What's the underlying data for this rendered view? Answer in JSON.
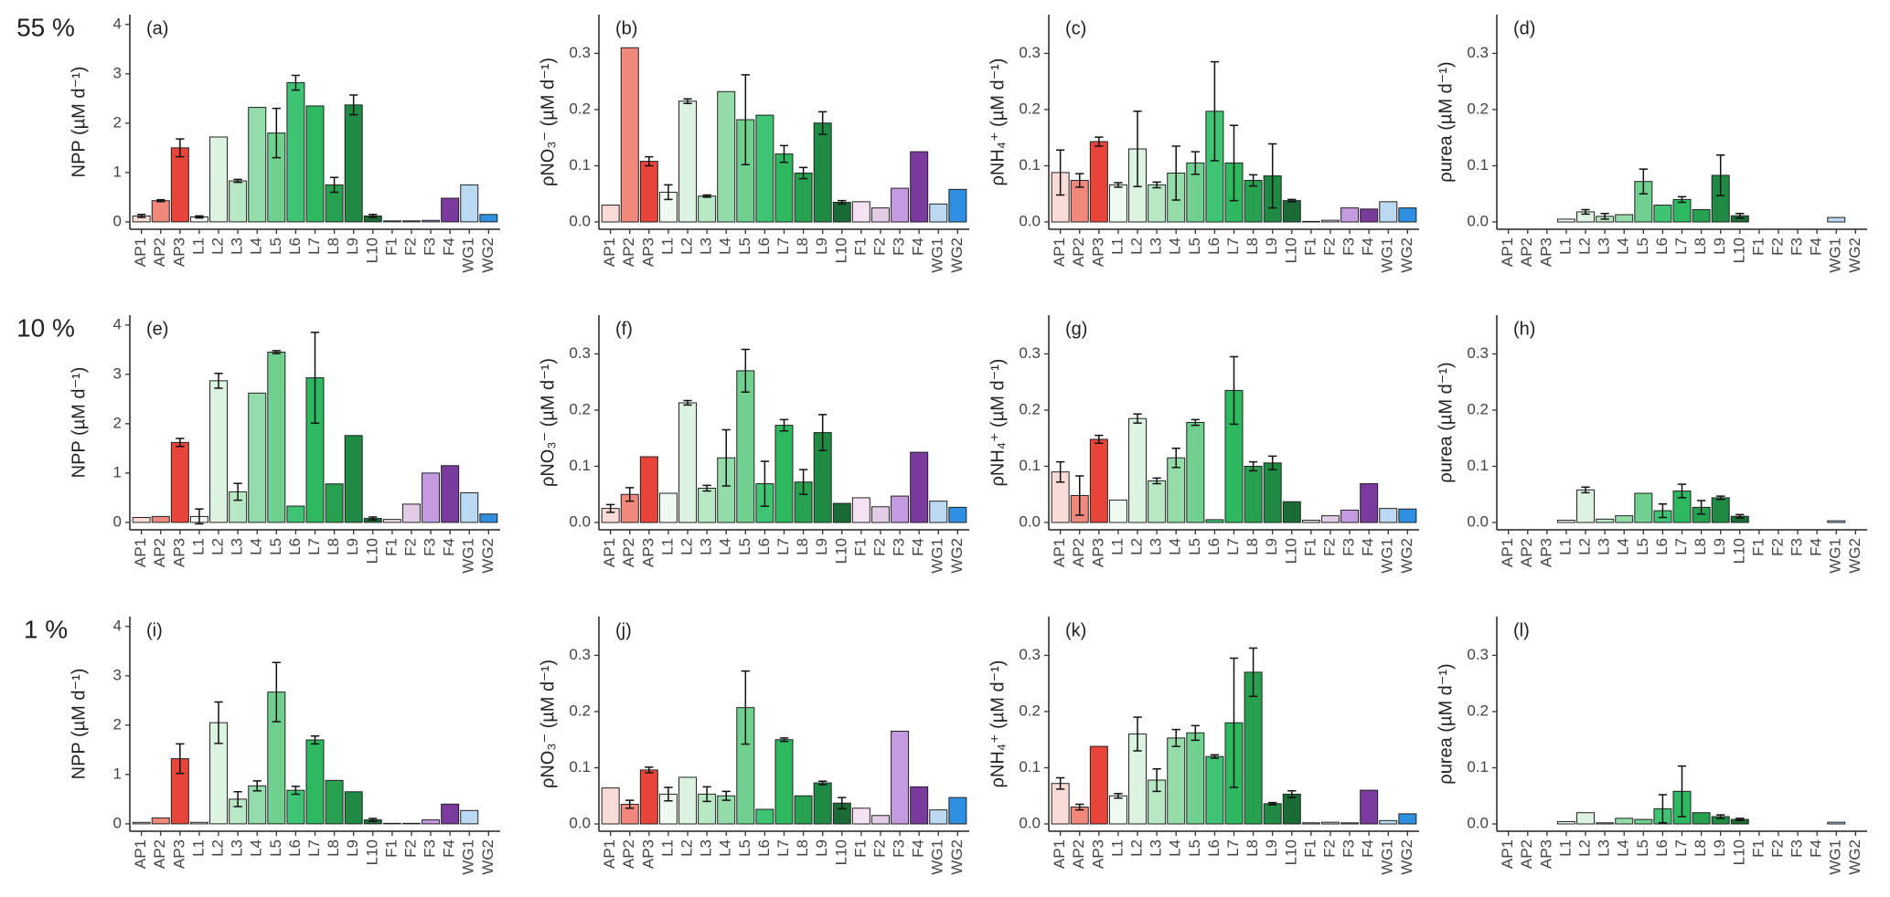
{
  "chart_data": [
    {
      "type": "bar",
      "row_label": "55 %",
      "panel_label": "(a)",
      "ylabel": "NPP (µM d⁻¹)",
      "categories": [
        "AP1",
        "AP2",
        "AP3",
        "L1",
        "L2",
        "L3",
        "L4",
        "L5",
        "L6",
        "L7",
        "L8",
        "L9",
        "L10",
        "F1",
        "F2",
        "F3",
        "F4",
        "WG1",
        "WG2"
      ],
      "colors": [
        "#fadcd6",
        "#f0897b",
        "#e8453a",
        "#eef9f0",
        "#dbf3e0",
        "#b8e8c4",
        "#94ddaa",
        "#6fd08f",
        "#3fc474",
        "#2eb85f",
        "#27a050",
        "#1e8a43",
        "#1a6b35",
        "#f3e3f2",
        "#e3cde6",
        "#c49be0",
        "#7b3a9e",
        "#bcd9f2",
        "#2f8fe0"
      ],
      "values": [
        0.12,
        0.43,
        1.5,
        0.1,
        1.72,
        0.83,
        2.32,
        1.8,
        2.82,
        2.35,
        0.75,
        2.37,
        0.12,
        0.02,
        0.02,
        0.03,
        0.48,
        0.75,
        0.15
      ],
      "errors": [
        0.03,
        0.02,
        0.18,
        0.02,
        null,
        0.03,
        null,
        0.5,
        0.15,
        null,
        0.15,
        0.2,
        0.03,
        null,
        null,
        null,
        null,
        null,
        null
      ],
      "ylim": [
        -0.15,
        4.2
      ],
      "yticks": [
        0,
        1,
        2,
        3,
        4
      ]
    },
    {
      "type": "bar",
      "panel_label": "(b)",
      "ylabel": "ρNO₃⁻ (µM d⁻¹)",
      "categories": [
        "AP1",
        "AP2",
        "AP3",
        "L1",
        "L2",
        "L3",
        "L4",
        "L5",
        "L6",
        "L7",
        "L8",
        "L9",
        "L10",
        "F1",
        "F2",
        "F3",
        "F4",
        "WG1",
        "WG2"
      ],
      "colors": [
        "#fadcd6",
        "#f0897b",
        "#e8453a",
        "#eef9f0",
        "#dbf3e0",
        "#b8e8c4",
        "#94ddaa",
        "#6fd08f",
        "#3fc474",
        "#2eb85f",
        "#27a050",
        "#1e8a43",
        "#1a6b35",
        "#f3e3f2",
        "#e3cde6",
        "#c49be0",
        "#7b3a9e",
        "#bcd9f2",
        "#2f8fe0"
      ],
      "values": [
        0.03,
        0.31,
        0.108,
        0.053,
        0.215,
        0.046,
        0.232,
        0.182,
        0.19,
        0.121,
        0.087,
        0.176,
        0.035,
        0.036,
        0.025,
        0.06,
        0.125,
        0.032,
        0.058
      ],
      "errors": [
        null,
        null,
        0.008,
        0.013,
        0.004,
        0.002,
        null,
        0.08,
        null,
        0.015,
        0.01,
        0.02,
        0.003,
        null,
        null,
        null,
        null,
        null,
        null
      ],
      "ylim": [
        -0.013,
        0.369
      ],
      "yticks": [
        {
          "value": 0,
          "label": "0.0"
        },
        0.1,
        0.2,
        0.3
      ]
    },
    {
      "type": "bar",
      "panel_label": "(c)",
      "ylabel": "ρNH₄⁺ (µM d⁻¹)",
      "categories": [
        "AP1",
        "AP2",
        "AP3",
        "L1",
        "L2",
        "L3",
        "L4",
        "L5",
        "L6",
        "L7",
        "L8",
        "L9",
        "L10",
        "F1",
        "F2",
        "F3",
        "F4",
        "WG1",
        "WG2"
      ],
      "colors": [
        "#fadcd6",
        "#f0897b",
        "#e8453a",
        "#eef9f0",
        "#dbf3e0",
        "#b8e8c4",
        "#94ddaa",
        "#6fd08f",
        "#3fc474",
        "#2eb85f",
        "#27a050",
        "#1e8a43",
        "#1a6b35",
        "#f3e3f2",
        "#e3cde6",
        "#c49be0",
        "#7b3a9e",
        "#bcd9f2",
        "#2f8fe0"
      ],
      "values": [
        0.088,
        0.074,
        0.143,
        0.066,
        0.13,
        0.066,
        0.087,
        0.105,
        0.197,
        0.105,
        0.074,
        0.082,
        0.038,
        0.001,
        0.003,
        0.025,
        0.023,
        0.036,
        0.025
      ],
      "errors": [
        0.04,
        0.012,
        0.008,
        0.004,
        0.067,
        0.005,
        0.048,
        0.02,
        0.088,
        0.067,
        0.01,
        0.057,
        0.002,
        null,
        null,
        null,
        null,
        null,
        null
      ],
      "ylim": [
        -0.013,
        0.369
      ],
      "yticks": [
        {
          "value": 0,
          "label": "0.0"
        },
        0.1,
        0.2,
        0.3
      ]
    },
    {
      "type": "bar",
      "panel_label": "(d)",
      "ylabel": "ρurea (µM d⁻¹)",
      "categories": [
        "AP1",
        "AP2",
        "AP3",
        "L1",
        "L2",
        "L3",
        "L4",
        "L5",
        "L6",
        "L7",
        "L8",
        "L9",
        "L10",
        "F1",
        "F2",
        "F3",
        "F4",
        "WG1",
        "WG2"
      ],
      "colors": [
        "#fadcd6",
        "#f0897b",
        "#e8453a",
        "#eef9f0",
        "#dbf3e0",
        "#b8e8c4",
        "#94ddaa",
        "#6fd08f",
        "#3fc474",
        "#2eb85f",
        "#27a050",
        "#1e8a43",
        "#1a6b35",
        "#f3e3f2",
        "#e3cde6",
        "#c49be0",
        "#7b3a9e",
        "#bcd9f2",
        "#2f8fe0"
      ],
      "values": [
        null,
        null,
        null,
        0.005,
        0.018,
        0.01,
        0.013,
        0.072,
        0.03,
        0.04,
        0.022,
        0.083,
        0.011,
        null,
        null,
        null,
        null,
        0.008,
        null
      ],
      "errors": [
        null,
        null,
        null,
        null,
        0.004,
        0.005,
        null,
        0.022,
        null,
        0.005,
        null,
        0.036,
        0.004,
        null,
        null,
        null,
        null,
        null,
        null
      ],
      "ylim": [
        -0.013,
        0.369
      ],
      "yticks": [
        {
          "value": 0,
          "label": "0.0"
        },
        0.1,
        0.2,
        0.3
      ]
    },
    {
      "type": "bar",
      "row_label": "10 %",
      "panel_label": "(e)",
      "ylabel": "NPP (µM d⁻¹)",
      "categories": [
        "AP1",
        "AP2",
        "AP3",
        "L1",
        "L2",
        "L3",
        "L4",
        "L5",
        "L6",
        "L7",
        "L8",
        "L9",
        "L10",
        "F1",
        "F2",
        "F3",
        "F4",
        "WG1",
        "WG2"
      ],
      "colors": [
        "#fadcd6",
        "#f0897b",
        "#e8453a",
        "#eef9f0",
        "#dbf3e0",
        "#b8e8c4",
        "#94ddaa",
        "#6fd08f",
        "#3fc474",
        "#2eb85f",
        "#27a050",
        "#1e8a43",
        "#1a6b35",
        "#f3e3f2",
        "#e3cde6",
        "#c49be0",
        "#7b3a9e",
        "#bcd9f2",
        "#2f8fe0"
      ],
      "values": [
        0.1,
        0.12,
        1.62,
        0.12,
        2.87,
        0.62,
        2.62,
        3.45,
        0.33,
        2.93,
        0.78,
        1.76,
        0.08,
        0.06,
        0.37,
        1.0,
        1.15,
        0.6,
        0.17
      ],
      "errors": [
        null,
        null,
        0.08,
        0.15,
        0.15,
        0.17,
        null,
        0.03,
        null,
        0.92,
        null,
        null,
        0.03,
        null,
        null,
        null,
        null,
        null,
        null
      ],
      "ylim": [
        -0.15,
        4.2
      ],
      "yticks": [
        0,
        1,
        2,
        3,
        4
      ]
    },
    {
      "type": "bar",
      "panel_label": "(f)",
      "ylabel": "ρNO₃⁻ (µM d⁻¹)",
      "categories": [
        "AP1",
        "AP2",
        "AP3",
        "L1",
        "L2",
        "L3",
        "L4",
        "L5",
        "L6",
        "L7",
        "L8",
        "L9",
        "L10",
        "F1",
        "F2",
        "F3",
        "F4",
        "WG1",
        "WG2"
      ],
      "colors": [
        "#fadcd6",
        "#f0897b",
        "#e8453a",
        "#eef9f0",
        "#dbf3e0",
        "#b8e8c4",
        "#94ddaa",
        "#6fd08f",
        "#3fc474",
        "#2eb85f",
        "#27a050",
        "#1e8a43",
        "#1a6b35",
        "#f3e3f2",
        "#e3cde6",
        "#c49be0",
        "#7b3a9e",
        "#bcd9f2",
        "#2f8fe0"
      ],
      "values": [
        0.025,
        0.05,
        0.117,
        0.052,
        0.213,
        0.061,
        0.115,
        0.27,
        0.069,
        0.173,
        0.072,
        0.16,
        0.034,
        0.044,
        0.028,
        0.047,
        0.125,
        0.038,
        0.027
      ],
      "errors": [
        0.007,
        0.012,
        null,
        null,
        0.004,
        0.005,
        0.05,
        0.038,
        0.04,
        0.01,
        0.022,
        0.032,
        null,
        null,
        null,
        null,
        null,
        null,
        null
      ],
      "ylim": [
        -0.013,
        0.369
      ],
      "yticks": [
        {
          "value": 0,
          "label": "0.0"
        },
        0.1,
        0.2,
        0.3
      ]
    },
    {
      "type": "bar",
      "panel_label": "(g)",
      "ylabel": "ρNH₄⁺ (µM d⁻¹)",
      "categories": [
        "AP1",
        "AP2",
        "AP3",
        "L1",
        "L2",
        "L3",
        "L4",
        "L5",
        "L6",
        "L7",
        "L8",
        "L9",
        "L10",
        "F1",
        "F2",
        "F3",
        "F4",
        "WG1",
        "WG2"
      ],
      "colors": [
        "#fadcd6",
        "#f0897b",
        "#e8453a",
        "#eef9f0",
        "#dbf3e0",
        "#b8e8c4",
        "#94ddaa",
        "#6fd08f",
        "#3fc474",
        "#2eb85f",
        "#27a050",
        "#1e8a43",
        "#1a6b35",
        "#f3e3f2",
        "#e3cde6",
        "#c49be0",
        "#7b3a9e",
        "#bcd9f2",
        "#2f8fe0"
      ],
      "values": [
        0.09,
        0.048,
        0.148,
        0.04,
        0.185,
        0.074,
        0.115,
        0.178,
        0.005,
        0.235,
        0.1,
        0.106,
        0.037,
        0.004,
        0.012,
        0.022,
        0.069,
        0.025,
        0.024
      ],
      "errors": [
        0.018,
        0.035,
        0.007,
        null,
        0.008,
        0.005,
        0.017,
        0.005,
        null,
        0.06,
        0.008,
        0.012,
        null,
        null,
        null,
        null,
        null,
        null,
        null
      ],
      "ylim": [
        -0.013,
        0.369
      ],
      "yticks": [
        {
          "value": 0,
          "label": "0.0"
        },
        0.1,
        0.2,
        0.3
      ]
    },
    {
      "type": "bar",
      "panel_label": "(h)",
      "ylabel": "ρurea (µM d⁻¹)",
      "categories": [
        "AP1",
        "AP2",
        "AP3",
        "L1",
        "L2",
        "L3",
        "L4",
        "L5",
        "L6",
        "L7",
        "L8",
        "L9",
        "L10",
        "F1",
        "F2",
        "F3",
        "F4",
        "WG1",
        "WG2"
      ],
      "colors": [
        "#fadcd6",
        "#f0897b",
        "#e8453a",
        "#eef9f0",
        "#dbf3e0",
        "#b8e8c4",
        "#94ddaa",
        "#6fd08f",
        "#3fc474",
        "#2eb85f",
        "#27a050",
        "#1e8a43",
        "#1a6b35",
        "#f3e3f2",
        "#e3cde6",
        "#c49be0",
        "#7b3a9e",
        "#bcd9f2",
        "#2f8fe0"
      ],
      "values": [
        null,
        null,
        null,
        0.004,
        0.058,
        0.006,
        0.012,
        0.052,
        0.021,
        0.056,
        0.027,
        0.044,
        0.011,
        null,
        null,
        null,
        null,
        0.003,
        null
      ],
      "errors": [
        null,
        null,
        null,
        null,
        0.005,
        null,
        null,
        null,
        0.012,
        0.012,
        0.012,
        0.003,
        0.003,
        null,
        null,
        null,
        null,
        null,
        null
      ],
      "ylim": [
        -0.013,
        0.369
      ],
      "yticks": [
        {
          "value": 0,
          "label": "0.0"
        },
        0.1,
        0.2,
        0.3
      ]
    },
    {
      "type": "bar",
      "row_label": "1 %",
      "panel_label": "(i)",
      "ylabel": "NPP (µM d⁻¹)",
      "categories": [
        "AP1",
        "AP2",
        "AP3",
        "L1",
        "L2",
        "L3",
        "L4",
        "L5",
        "L6",
        "L7",
        "L8",
        "L9",
        "L10",
        "F1",
        "F2",
        "F3",
        "F4",
        "WG1",
        "WG2"
      ],
      "colors": [
        "#fadcd6",
        "#f0897b",
        "#e8453a",
        "#eef9f0",
        "#dbf3e0",
        "#b8e8c4",
        "#94ddaa",
        "#6fd08f",
        "#3fc474",
        "#2eb85f",
        "#27a050",
        "#1e8a43",
        "#1a6b35",
        "#f3e3f2",
        "#e3cde6",
        "#c49be0",
        "#7b3a9e",
        "#bcd9f2",
        "#2f8fe0"
      ],
      "values": [
        0.03,
        0.12,
        1.32,
        0.03,
        2.05,
        0.5,
        0.77,
        2.67,
        0.68,
        1.7,
        0.88,
        0.65,
        0.08,
        0.01,
        0.01,
        0.08,
        0.4,
        0.27,
        null
      ],
      "errors": [
        null,
        null,
        0.3,
        null,
        0.42,
        0.15,
        0.1,
        0.6,
        0.08,
        0.08,
        null,
        null,
        0.03,
        null,
        null,
        null,
        null,
        null,
        null
      ],
      "ylim": [
        -0.15,
        4.2
      ],
      "yticks": [
        0,
        1,
        2,
        3,
        4
      ]
    },
    {
      "type": "bar",
      "panel_label": "(j)",
      "ylabel": "ρNO₃⁻ (µM d⁻¹)",
      "categories": [
        "AP1",
        "AP2",
        "AP3",
        "L1",
        "L2",
        "L3",
        "L4",
        "L5",
        "L6",
        "L7",
        "L8",
        "L9",
        "L10",
        "F1",
        "F2",
        "F3",
        "F4",
        "WG1",
        "WG2"
      ],
      "colors": [
        "#fadcd6",
        "#f0897b",
        "#e8453a",
        "#eef9f0",
        "#dbf3e0",
        "#b8e8c4",
        "#94ddaa",
        "#6fd08f",
        "#3fc474",
        "#2eb85f",
        "#27a050",
        "#1e8a43",
        "#1a6b35",
        "#f3e3f2",
        "#e3cde6",
        "#c49be0",
        "#7b3a9e",
        "#bcd9f2",
        "#2f8fe0"
      ],
      "values": [
        0.064,
        0.035,
        0.096,
        0.053,
        0.083,
        0.053,
        0.05,
        0.207,
        0.026,
        0.15,
        0.05,
        0.073,
        0.037,
        0.028,
        0.015,
        0.165,
        0.066,
        0.025,
        0.047
      ],
      "errors": [
        null,
        0.007,
        0.005,
        0.012,
        null,
        0.013,
        0.008,
        0.065,
        null,
        0.003,
        null,
        0.003,
        0.01,
        null,
        null,
        null,
        null,
        null,
        null
      ],
      "ylim": [
        -0.013,
        0.369
      ],
      "yticks": [
        {
          "value": 0,
          "label": "0.0"
        },
        0.1,
        0.2,
        0.3
      ]
    },
    {
      "type": "bar",
      "panel_label": "(k)",
      "ylabel": "ρNH₄⁺ (µM d⁻¹)",
      "categories": [
        "AP1",
        "AP2",
        "AP3",
        "L1",
        "L2",
        "L3",
        "L4",
        "L5",
        "L6",
        "L7",
        "L8",
        "L9",
        "L10",
        "F1",
        "F2",
        "F3",
        "F4",
        "WG1",
        "WG2"
      ],
      "colors": [
        "#fadcd6",
        "#f0897b",
        "#e8453a",
        "#eef9f0",
        "#dbf3e0",
        "#b8e8c4",
        "#94ddaa",
        "#6fd08f",
        "#3fc474",
        "#2eb85f",
        "#27a050",
        "#1e8a43",
        "#1a6b35",
        "#f3e3f2",
        "#e3cde6",
        "#c49be0",
        "#7b3a9e",
        "#bcd9f2",
        "#2f8fe0"
      ],
      "values": [
        0.072,
        0.03,
        0.138,
        0.05,
        0.16,
        0.078,
        0.153,
        0.162,
        0.12,
        0.18,
        0.27,
        0.036,
        0.053,
        0.002,
        0.003,
        0.002,
        0.06,
        0.006,
        0.018
      ],
      "errors": [
        0.01,
        0.005,
        null,
        0.004,
        0.03,
        0.02,
        0.015,
        0.013,
        0.003,
        0.115,
        0.043,
        0.002,
        0.006,
        null,
        null,
        null,
        null,
        null,
        null
      ],
      "ylim": [
        -0.013,
        0.369
      ],
      "yticks": [
        {
          "value": 0,
          "label": "0.0"
        },
        0.1,
        0.2,
        0.3
      ]
    },
    {
      "type": "bar",
      "panel_label": "(l)",
      "ylabel": "ρurea (µM d⁻¹)",
      "categories": [
        "AP1",
        "AP2",
        "AP3",
        "L1",
        "L2",
        "L3",
        "L4",
        "L5",
        "L6",
        "L7",
        "L8",
        "L9",
        "L10",
        "F1",
        "F2",
        "F3",
        "F4",
        "WG1",
        "WG2"
      ],
      "colors": [
        "#fadcd6",
        "#f0897b",
        "#e8453a",
        "#eef9f0",
        "#dbf3e0",
        "#b8e8c4",
        "#94ddaa",
        "#6fd08f",
        "#3fc474",
        "#2eb85f",
        "#27a050",
        "#1e8a43",
        "#1a6b35",
        "#f3e3f2",
        "#e3cde6",
        "#c49be0",
        "#7b3a9e",
        "#bcd9f2",
        "#2f8fe0"
      ],
      "values": [
        null,
        null,
        null,
        0.004,
        0.02,
        0.002,
        0.01,
        0.008,
        0.027,
        0.058,
        0.02,
        0.013,
        0.008,
        null,
        null,
        null,
        null,
        0.003,
        null
      ],
      "errors": [
        null,
        null,
        null,
        null,
        null,
        null,
        null,
        null,
        0.025,
        0.045,
        null,
        0.003,
        0.002,
        null,
        null,
        null,
        null,
        null,
        null
      ],
      "ylim": [
        -0.013,
        0.369
      ],
      "yticks": [
        {
          "value": 0,
          "label": "0.0"
        },
        0.1,
        0.2,
        0.3
      ]
    }
  ]
}
